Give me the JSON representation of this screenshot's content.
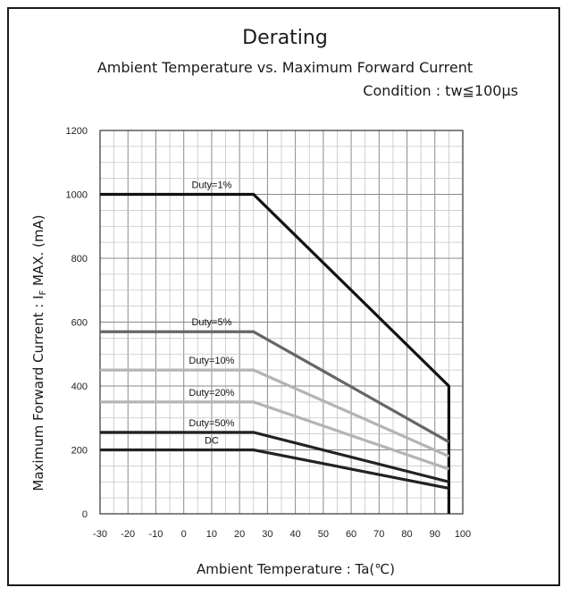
{
  "chart_data": {
    "type": "line",
    "title": "Derating",
    "subtitle": "Ambient Temperature vs. Maximum Forward Current",
    "condition": "Condition : tw≦100μs",
    "xlabel": "Ambient Temperature : Ta(℃)",
    "ylabel": "Maximum Forward Current : I_F MAX. (mA)",
    "xlim": [
      -30,
      100
    ],
    "ylim": [
      0,
      1200
    ],
    "x_ticks": [
      -30,
      -20,
      -10,
      0,
      10,
      20,
      30,
      40,
      50,
      60,
      70,
      80,
      90,
      100
    ],
    "y_ticks": [
      0,
      200,
      400,
      600,
      800,
      1000,
      1200
    ],
    "grid": true,
    "series": [
      {
        "name": "Duty=1%",
        "color": "#111111",
        "x": [
          -30,
          25,
          95,
          95
        ],
        "y": [
          1000,
          1000,
          400,
          0
        ]
      },
      {
        "name": "Duty=5%",
        "color": "#666666",
        "x": [
          -30,
          25,
          95
        ],
        "y": [
          570,
          570,
          225
        ]
      },
      {
        "name": "Duty=10%",
        "color": "#b4b4b4",
        "x": [
          -30,
          25,
          95
        ],
        "y": [
          450,
          450,
          180
        ]
      },
      {
        "name": "Duty=20%",
        "color": "#b4b4b4",
        "x": [
          -30,
          25,
          95
        ],
        "y": [
          350,
          350,
          140
        ]
      },
      {
        "name": "Duty=50%",
        "color": "#222222",
        "x": [
          -30,
          25,
          95
        ],
        "y": [
          255,
          255,
          100
        ]
      },
      {
        "name": "DC",
        "color": "#222222",
        "x": [
          -30,
          25,
          95
        ],
        "y": [
          200,
          200,
          80
        ]
      }
    ]
  }
}
